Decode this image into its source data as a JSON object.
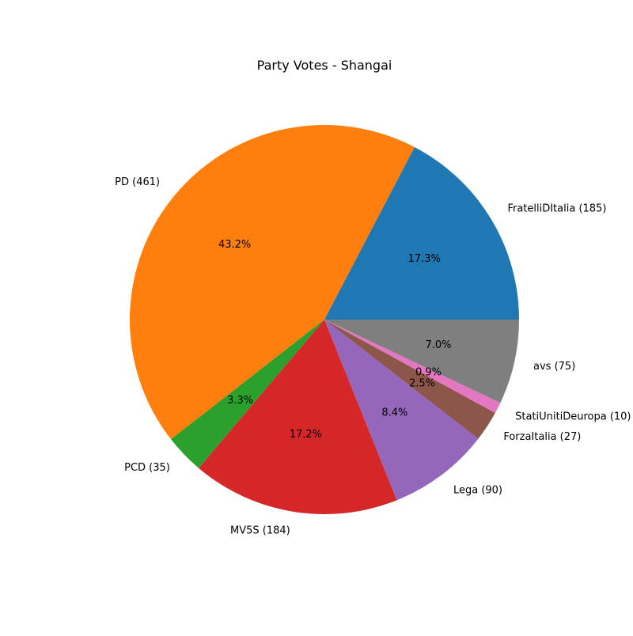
{
  "chart_data": {
    "type": "pie",
    "title": "Party Votes - Shangai",
    "slices": [
      {
        "label": "FratelliDItalia (185)",
        "value": 185,
        "percent": "17.3%",
        "color": "#1f77b4"
      },
      {
        "label": "PD (461)",
        "value": 461,
        "percent": "43.2%",
        "color": "#ff7f0e"
      },
      {
        "label": "PCD (35)",
        "value": 35,
        "percent": "3.3%",
        "color": "#2ca02c"
      },
      {
        "label": "MV5S (184)",
        "value": 184,
        "percent": "17.2%",
        "color": "#d62728"
      },
      {
        "label": "Lega (90)",
        "value": 90,
        "percent": "8.4%",
        "color": "#9467bd"
      },
      {
        "label": "ForzaItalia (27)",
        "value": 27,
        "percent": "2.5%",
        "color": "#8c564b"
      },
      {
        "label": "StatiUnitiDeuropa (10)",
        "value": 10,
        "percent": "0.9%",
        "color": "#e377c2"
      },
      {
        "label": "avs (75)",
        "value": 75,
        "percent": "7.0%",
        "color": "#7f7f7f"
      }
    ],
    "start_angle_deg": 0,
    "direction": "counterclockwise"
  }
}
